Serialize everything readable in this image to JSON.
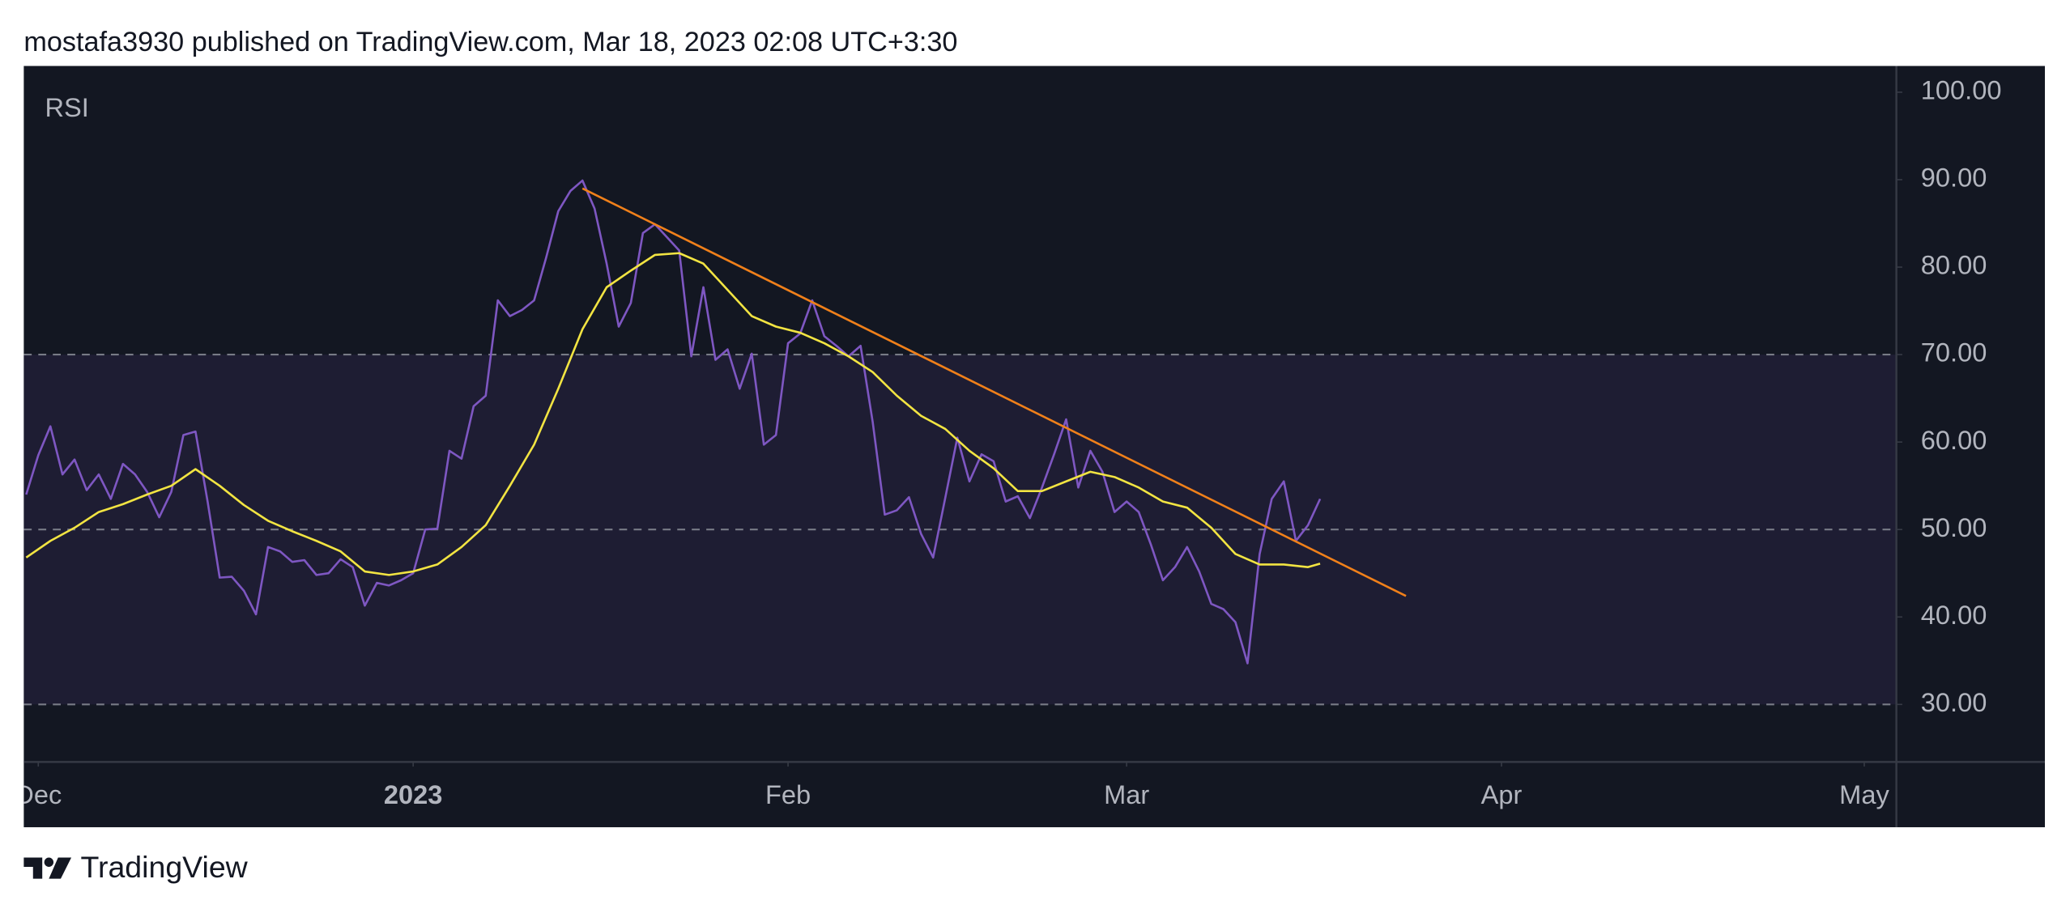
{
  "header": "mostafa3930 published on TradingView.com, Mar 18, 2023 02:08 UTC+3:30",
  "footer": "TradingView",
  "chart_data": {
    "type": "line",
    "xlim": [
      -1.2,
      153.6
    ],
    "xticks": [
      {
        "value": 0,
        "label": "Dec"
      },
      {
        "value": 31,
        "label": "2023",
        "bold": true
      },
      {
        "value": 62,
        "label": "Feb"
      },
      {
        "value": 90,
        "label": "Mar"
      },
      {
        "value": 121,
        "label": "Apr"
      },
      {
        "value": 151,
        "label": "May"
      }
    ],
    "ylim": [
      23.5,
      103.0
    ],
    "yticks": [
      {
        "value": 30,
        "label": "30.00"
      },
      {
        "value": 40,
        "label": "40.00"
      },
      {
        "value": 50,
        "label": "50.00"
      },
      {
        "value": 60,
        "label": "60.00"
      },
      {
        "value": 70,
        "label": "70.00"
      },
      {
        "value": 80,
        "label": "80.00"
      },
      {
        "value": 90,
        "label": "90.00"
      },
      {
        "value": 100,
        "label": "100.00"
      }
    ],
    "band": [
      30,
      70
    ],
    "band_color": "#1e1d33",
    "hlines": [
      70,
      50,
      30
    ],
    "series": [
      {
        "name": "RSI",
        "color": "#7e57c2",
        "x": [
          -1,
          0,
          1,
          2,
          3,
          4,
          5,
          6,
          7,
          8,
          9,
          10,
          11,
          12,
          13,
          14,
          15,
          16,
          17,
          18,
          19,
          20,
          21,
          22,
          23,
          24,
          25,
          26,
          27,
          28,
          29,
          30,
          31,
          32,
          33,
          34,
          35,
          36,
          37,
          38,
          39,
          40,
          41,
          42,
          43,
          44,
          45,
          46,
          47,
          48,
          49,
          50,
          51,
          52,
          53,
          54,
          55,
          56,
          57,
          58,
          59,
          60,
          61,
          62,
          63,
          64,
          65,
          66,
          67,
          68,
          69,
          70,
          71,
          72,
          73,
          74,
          75,
          76,
          77,
          78,
          79,
          80,
          81,
          82,
          83,
          84,
          85,
          86,
          87,
          88,
          89,
          90,
          91,
          92,
          93,
          94,
          95,
          96,
          97,
          98,
          99,
          100,
          101,
          102,
          103,
          104,
          105,
          106
        ],
        "values": [
          54,
          58.5,
          61.8,
          56.3,
          58,
          54.5,
          56.3,
          53.5,
          57.5,
          56.3,
          54.3,
          51.4,
          54.3,
          60.8,
          61.2,
          53.2,
          44.5,
          44.6,
          43,
          40.3,
          48,
          47.5,
          46.3,
          46.5,
          44.8,
          45,
          46.6,
          45.7,
          41.3,
          43.9,
          43.6,
          44.2,
          45,
          50,
          50.1,
          59,
          58.1,
          64.1,
          65.3,
          76.2,
          74.4,
          75.1,
          76.2,
          81.1,
          86.4,
          88.7,
          89.9,
          86.7,
          80.4,
          73.2,
          75.9,
          83.9,
          84.9,
          83.4,
          81.9,
          69.8,
          77.7,
          69.4,
          70.6,
          66.1,
          70.1,
          59.7,
          60.8,
          71.3,
          72.4,
          76.2,
          72.1,
          71,
          69.8,
          71,
          62.3,
          51.7,
          52.2,
          53.7,
          49.5,
          46.8,
          53.6,
          60.5,
          55.5,
          58.6,
          57.8,
          53.2,
          53.8,
          51.3,
          54.8,
          58.6,
          62.6,
          54.8,
          59,
          56.6,
          52,
          53.2,
          52,
          48.3,
          44.2,
          45.7,
          48,
          45.2,
          41.5,
          40.9,
          39.4,
          34.7,
          47.2,
          53.5,
          55.5,
          48.7,
          50.5,
          53.5
        ]
      },
      {
        "color": "#f2e442",
        "x": [
          -1,
          1,
          3,
          5,
          7,
          9,
          11,
          13,
          15,
          17,
          19,
          21,
          23,
          25,
          27,
          29,
          31,
          33,
          35,
          37,
          39,
          41,
          43,
          45,
          47,
          49,
          51,
          53,
          55,
          57,
          59,
          61,
          63,
          65,
          67,
          69,
          71,
          73,
          75,
          77,
          79,
          81,
          83,
          85,
          87,
          89,
          91,
          93,
          95,
          97,
          99,
          101,
          103,
          105,
          106
        ],
        "values": [
          46.8,
          48.7,
          50.2,
          52,
          52.9,
          54,
          55,
          56.9,
          55,
          52.8,
          51,
          49.8,
          48.7,
          47.5,
          45.2,
          44.8,
          45.2,
          46,
          48,
          50.5,
          55,
          59.7,
          66.1,
          72.9,
          77.7,
          79.6,
          81.4,
          81.6,
          80.4,
          77.4,
          74.4,
          73.2,
          72.5,
          71.3,
          69.8,
          68,
          65.3,
          63,
          61.5,
          59,
          57,
          54.4,
          54.4,
          55.5,
          56.6,
          56,
          54.8,
          53.2,
          52.5,
          50.2,
          47.2,
          46,
          46,
          45.7,
          46.1
        ]
      },
      {
        "color": "#f0801a",
        "x": [
          45,
          113.1
        ],
        "values": [
          89,
          42.4
        ]
      }
    ]
  }
}
